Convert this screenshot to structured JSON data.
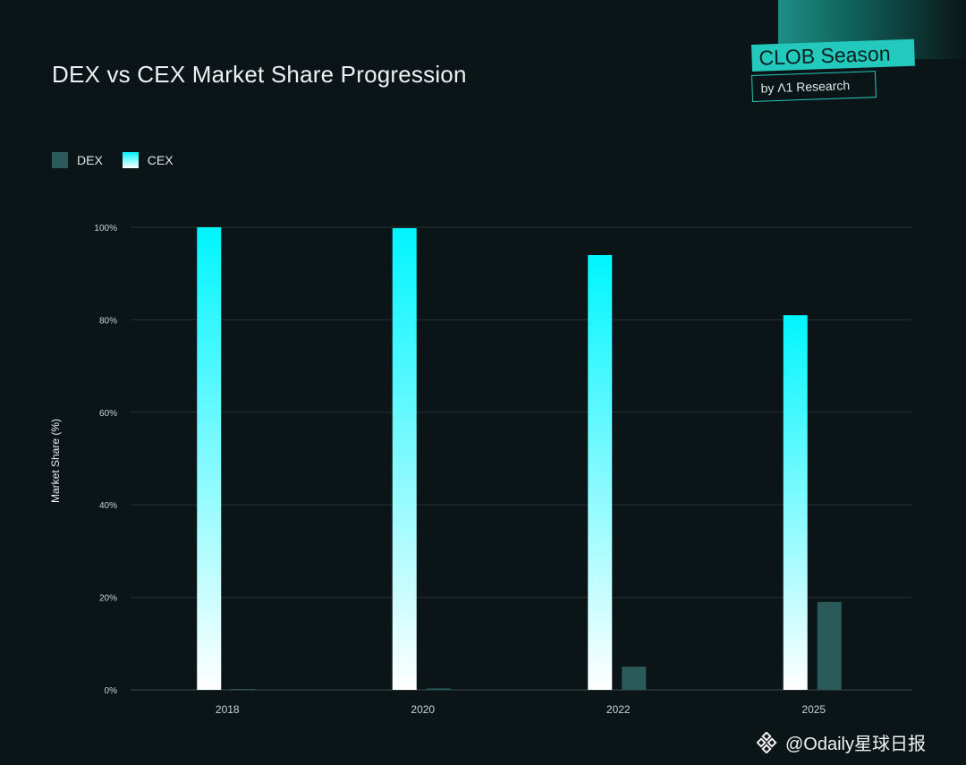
{
  "chart_data": {
    "type": "bar",
    "title": "DEX vs CEX Market Share Progression",
    "ylabel": "Market Share (%)",
    "xlabel": "",
    "categories": [
      "2018",
      "2020",
      "2022",
      "2025"
    ],
    "series": [
      {
        "name": "CEX",
        "values": [
          100,
          99.8,
          94,
          81
        ]
      },
      {
        "name": "DEX",
        "values": [
          0.1,
          0.3,
          5,
          19
        ]
      }
    ],
    "ylim": [
      0,
      100
    ],
    "yticks": [
      0,
      20,
      40,
      60,
      80,
      100
    ],
    "ytick_labels": [
      "0%",
      "20%",
      "40%",
      "60%",
      "80%",
      "100%"
    ],
    "grid": true,
    "legend": "top-left",
    "colors": {
      "CEX_top": "#00f5ff",
      "CEX_bottom": "#ffffff",
      "DEX": "#2a5b5a",
      "background": "#0b1517"
    }
  },
  "brand": {
    "main": "CLOB Season",
    "sub": "by Λ1 Research"
  },
  "watermark": {
    "text": "@Odaily星球日报",
    "icon": "binance-diamond-icon"
  }
}
